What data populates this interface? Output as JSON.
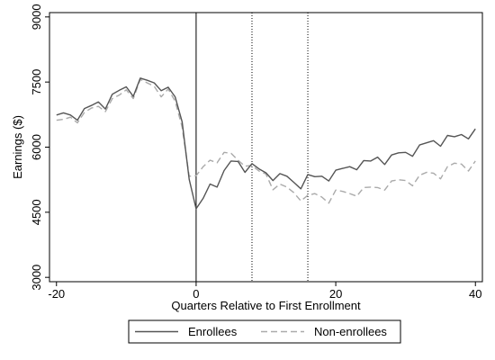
{
  "chart_data": {
    "type": "line",
    "title": "",
    "xlabel": "Quarters Relative to First Enrollment",
    "ylabel": "Earnings ($)",
    "xlim": [
      -21,
      41
    ],
    "ylim": [
      2900,
      9100
    ],
    "xticks": [
      -20,
      0,
      20,
      40
    ],
    "yticks": [
      3000,
      4500,
      6000,
      7500,
      9000
    ],
    "solid_vline": 0,
    "dotted_vlines": [
      8,
      16
    ],
    "grid": false,
    "legend_position": "bottom",
    "series": [
      {
        "name": "Enrollees",
        "style": "solid",
        "color": "#555555",
        "x": [
          -20,
          -19,
          -18,
          -17,
          -16,
          -15,
          -14,
          -13,
          -12,
          -11,
          -10,
          -9,
          -8,
          -7,
          -6,
          -5,
          -4,
          -3,
          -2,
          -1,
          0,
          1,
          2,
          3,
          4,
          5,
          6,
          7,
          8,
          9,
          10,
          11,
          12,
          13,
          14,
          15,
          16,
          17,
          18,
          19,
          20,
          21,
          22,
          23,
          24,
          25,
          26,
          27,
          28,
          29,
          30,
          31,
          32,
          33,
          34,
          35,
          36,
          37,
          38,
          39,
          40
        ],
        "y": [
          6740,
          6790,
          6740,
          6620,
          6890,
          6960,
          7040,
          6880,
          7220,
          7310,
          7390,
          7170,
          7590,
          7540,
          7480,
          7300,
          7380,
          7160,
          6580,
          5260,
          4580,
          4820,
          5150,
          5080,
          5460,
          5680,
          5670,
          5420,
          5620,
          5500,
          5410,
          5230,
          5390,
          5330,
          5190,
          5040,
          5370,
          5320,
          5330,
          5220,
          5470,
          5510,
          5550,
          5480,
          5690,
          5680,
          5770,
          5600,
          5820,
          5870,
          5880,
          5790,
          6050,
          6100,
          6150,
          6020,
          6270,
          6240,
          6290,
          6190,
          6420
        ]
      },
      {
        "name": "Non-enrollees",
        "style": "dashed",
        "color": "#aaaaaa",
        "x": [
          -20,
          -19,
          -18,
          -17,
          -16,
          -15,
          -14,
          -13,
          -12,
          -11,
          -10,
          -9,
          -8,
          -7,
          -6,
          -5,
          -4,
          -3,
          -2,
          -1,
          0,
          1,
          2,
          3,
          4,
          5,
          6,
          7,
          8,
          9,
          10,
          11,
          12,
          13,
          14,
          15,
          16,
          17,
          18,
          19,
          20,
          21,
          22,
          23,
          24,
          25,
          26,
          27,
          28,
          29,
          30,
          31,
          32,
          33,
          34,
          35,
          36,
          37,
          38,
          39,
          40
        ],
        "y": [
          6620,
          6640,
          6690,
          6560,
          6800,
          6900,
          6940,
          6820,
          7120,
          7200,
          7320,
          7120,
          7560,
          7480,
          7400,
          7160,
          7340,
          7060,
          6460,
          5330,
          5340,
          5550,
          5700,
          5640,
          5880,
          5860,
          5700,
          5560,
          5580,
          5450,
          5380,
          5020,
          5150,
          5080,
          4950,
          4760,
          4890,
          4930,
          4850,
          4710,
          5010,
          4980,
          4930,
          4870,
          5070,
          5080,
          5070,
          5010,
          5220,
          5250,
          5230,
          5110,
          5350,
          5420,
          5400,
          5270,
          5550,
          5630,
          5610,
          5450,
          5680
        ]
      }
    ]
  }
}
